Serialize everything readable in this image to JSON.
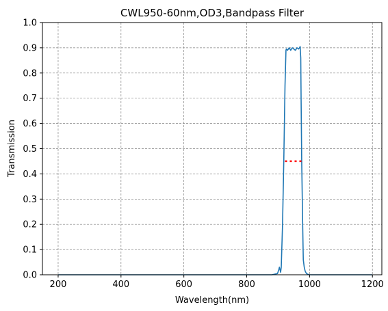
{
  "chart_data": {
    "type": "line",
    "title": "CWL950-60nm,OD3,Bandpass Filter",
    "xlabel": "Wavelength(nm)",
    "ylabel": "Transmission",
    "xlim": [
      150,
      1230
    ],
    "ylim": [
      0,
      1.0
    ],
    "xticks": [
      200,
      400,
      600,
      800,
      1000,
      1200
    ],
    "yticks": [
      0.0,
      0.1,
      0.2,
      0.3,
      0.4,
      0.5,
      0.6,
      0.7,
      0.8,
      0.9,
      1.0
    ],
    "xtick_labels": [
      "200",
      "400",
      "600",
      "800",
      "1000",
      "1200"
    ],
    "ytick_labels": [
      "0.0",
      "0.1",
      "0.2",
      "0.3",
      "0.4",
      "0.5",
      "0.6",
      "0.7",
      "0.8",
      "0.9",
      "1.0"
    ],
    "grid": true,
    "series": [
      {
        "color": "#1f77b4",
        "x": [
          200,
          400,
          600,
          800,
          880,
          898,
          902,
          904,
          906,
          908,
          910,
          914,
          918,
          922,
          925,
          926,
          930,
          935,
          940,
          945,
          950,
          955,
          960,
          965,
          968,
          970,
          972,
          973,
          975,
          978,
          980,
          983,
          986,
          990,
          995,
          1000,
          1010,
          1100,
          1200
        ],
        "y": [
          0.0,
          0.0,
          0.0,
          0.0,
          0.0,
          0.005,
          0.02,
          0.03,
          0.02,
          0.01,
          0.03,
          0.2,
          0.45,
          0.75,
          0.89,
          0.895,
          0.89,
          0.9,
          0.89,
          0.9,
          0.895,
          0.89,
          0.9,
          0.895,
          0.9,
          0.905,
          0.86,
          0.7,
          0.45,
          0.2,
          0.06,
          0.03,
          0.015,
          0.005,
          0.002,
          0.0,
          0.0,
          0.0,
          0.0
        ]
      },
      {
        "color": "#ff0000",
        "dashed": true,
        "x": [
          922,
          978
        ],
        "y": [
          0.45,
          0.45
        ]
      }
    ]
  }
}
